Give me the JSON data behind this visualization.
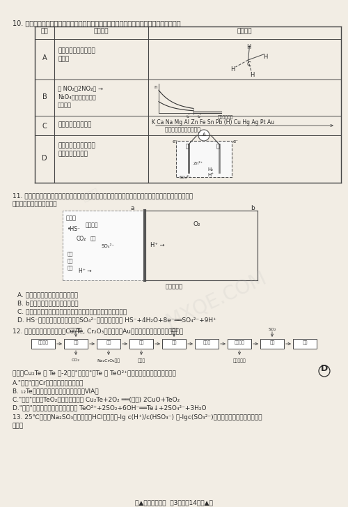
{
  "bg_color": "#f2ede4",
  "text_color": "#2a2a2a",
  "title_q10": "10. 化学学科素养要求建立认知模型，且能运用模型解释化学现象，下列对应关系错误的是",
  "table_header": [
    "选项",
    "科学事实",
    "认知模型"
  ],
  "row_A_label": "A",
  "row_A_text1": "甲烷的二氧化物只有一",
  "row_A_text2": "种结构",
  "row_B_label": "B",
  "row_B_text1": "等 NO₂（2NO₂） →",
  "row_B_text2": "N₂O₄球模型在热水中",
  "row_B_text3": "颜色变深",
  "row_C_label": "C",
  "row_C_text": "工业上用钠单制取铜",
  "row_C_model1": "K Ca Na Mg Al Zn Fe Sn Pb (H) Cu Hg Ag Pt Au",
  "row_C_model2": "金属活动性由强逐渐减弱",
  "row_D_label": "D",
  "row_D_text1": "粗锌与稀硫酸反应比纯",
  "row_D_text2": "锌与稀硫酸反应快",
  "q11_title": "11. 微生物燃料电池是指在微生物的作用下将化学能转化为电能的装置，某微生物燃料电池的工作原理如图",
  "q11_title2": "所示，下列说法中错误的是",
  "q11_A": "A. 该微生物电池不宜在高温下工作",
  "q11_B": "B. b极为该微生物燃料电池的正极",
  "q11_C": "C. 若维持该微生物电池中两种细菌的存在，则电池可以持续供电",
  "q11_D": "D. HS⁻在硫氧化菌作用下转化为SO₄²⁻的电极反应式为 HS⁻+4H₂O+8e⁻══SO₄²⁻+9H⁺",
  "q12_title": "12. 某电镀污泥（主要成分为Cu₂Te, Cr₂O₃以及少量的Au）资源化利用的工艺流程如图，",
  "q12_flow": [
    "电镀污泥",
    "煅烧",
    "水浸",
    "沉淀",
    "酸浸",
    "浸出液",
    "电解沉积",
    "还原",
    "粗铜"
  ],
  "q12_below": [
    "CO₂",
    "Na₂CrO₄溶液",
    "回收金",
    "金属单质铜"
  ],
  "q12_below_idx": [
    1,
    2,
    3,
    6
  ],
  "q12_above": [
    "纯碱、空气",
    "稀硫酸",
    "SO₂"
  ],
  "q12_above_idx": [
    1,
    4,
    7
  ],
  "q12_note": "已知：Cu₂Te 中 Te 为-2价，\"浸出液\"中Te 以 TeO²⁺形式存在，下列说法正确的是",
  "q12_answer": "D",
  "q12_A": "A.\"煅烧\"时，Cr元素的化合价没有改变",
  "q12_B": "B. ₁₂Te在元素周期表中位于第四周期第ⅥA族",
  "q12_C": "C.\"煅烧\"时生成TeO₂的化学方程式为 Cu₂Te+2O₂ ══(高温) 2CuO+TeO₂",
  "q12_D": "D.\"还原\"时发生反应的离子方程式为 TeO²⁺+2SO₂+6OH⁻══Te↓+2SO₄²⁻+3H₂O",
  "q13_text1": "13. 25℃时，在Na₂SO₃溶液中通入HCl，溶液中-lg c(H⁺)/c(HSO₃⁻) 和-lgc(SO₃²⁻)的关系如图所示，下列说法错",
  "q13_text2": "误的是",
  "footer": "【▲高三理科综合  第3页（共14页）▲】"
}
